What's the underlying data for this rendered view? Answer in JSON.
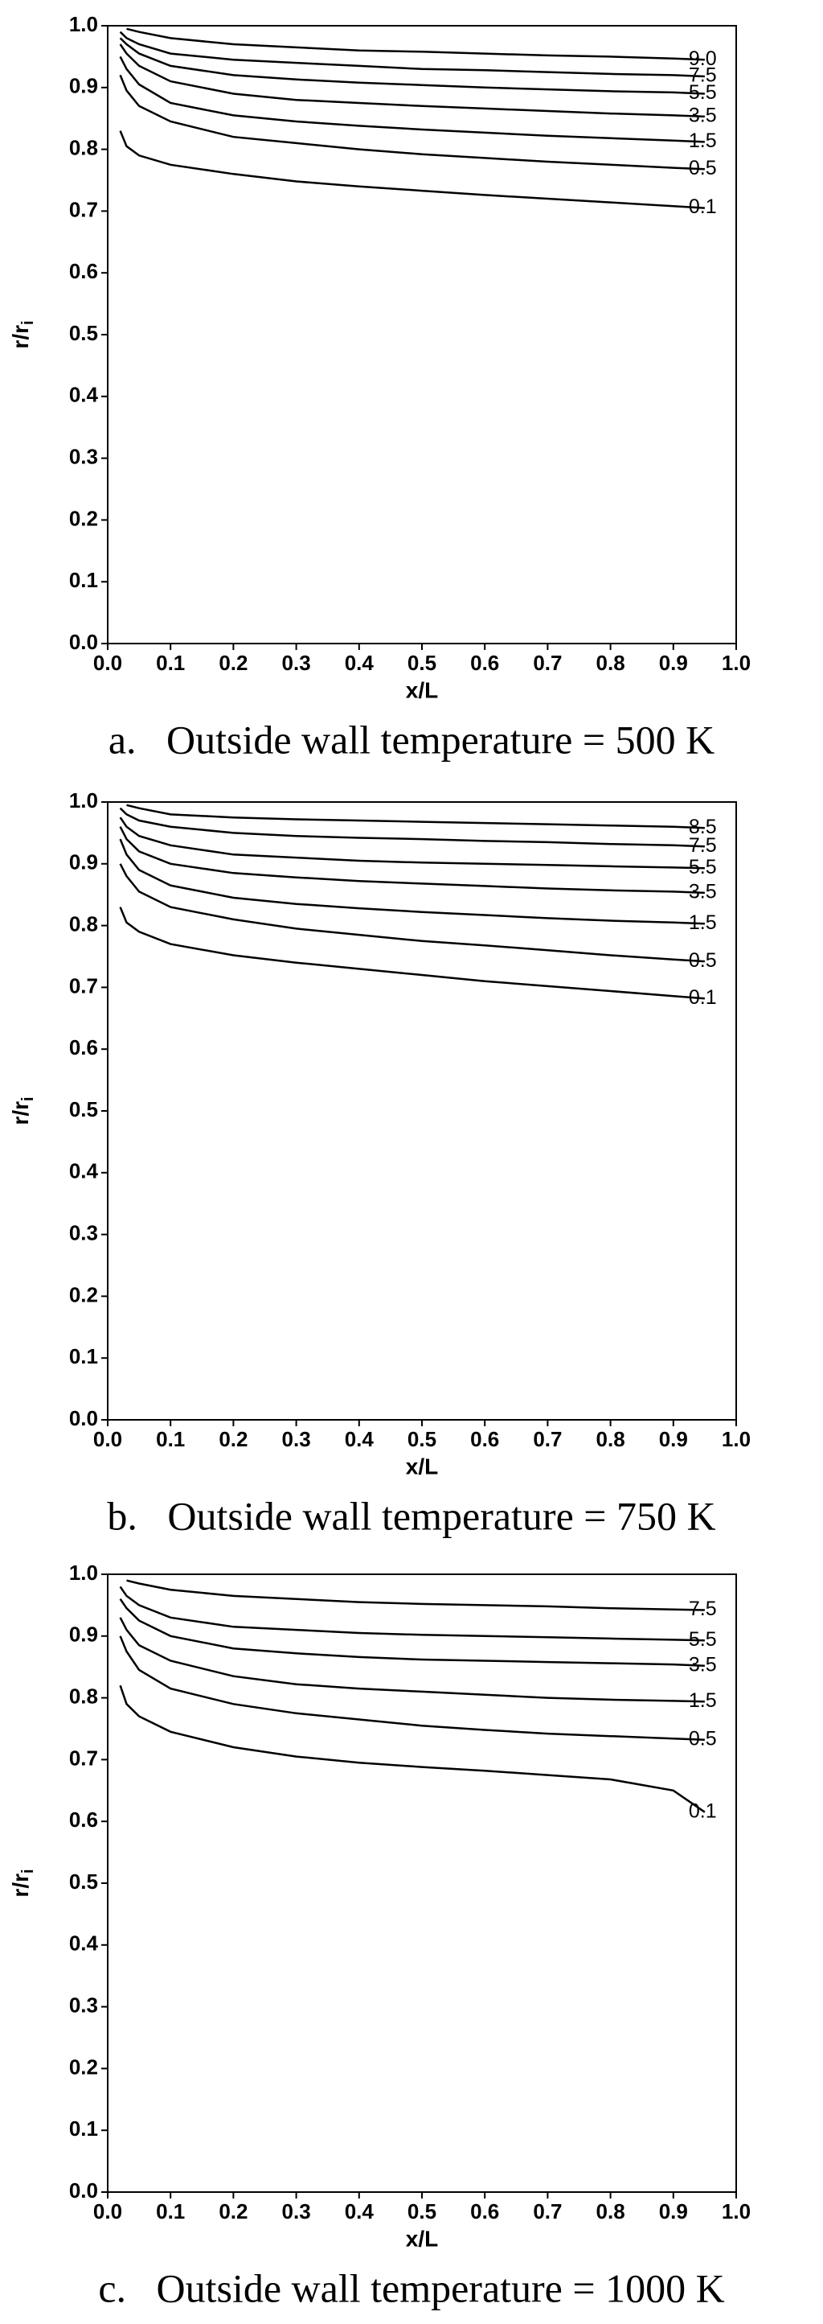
{
  "chart_data": [
    {
      "type": "contour",
      "xlabel": "x/L",
      "ylabel": "r/r",
      "ylabel_subscript": "i",
      "caption": "a.   Outside wall temperature = 500 K",
      "xlim": [
        0,
        1
      ],
      "ylim": [
        0,
        1
      ],
      "xticks": [
        {
          "value": 0,
          "label": "0.0"
        },
        0.1,
        0.2,
        0.3,
        0.4,
        0.5,
        0.6,
        0.7,
        0.8,
        0.9,
        {
          "value": 1,
          "label": "1.0"
        }
      ],
      "yticks": [
        {
          "value": 0,
          "label": "0.0"
        },
        0.1,
        0.2,
        0.3,
        0.4,
        0.5,
        0.6,
        0.7,
        0.8,
        0.9,
        {
          "value": 1,
          "label": "1.0"
        }
      ],
      "x": [
        0.02,
        0.03,
        0.05,
        0.1,
        0.2,
        0.3,
        0.4,
        0.5,
        0.6,
        0.7,
        0.8,
        0.9,
        0.95
      ],
      "series": [
        {
          "name": "9.0",
          "color": "#000000",
          "values": [
            null,
            0.995,
            0.99,
            0.98,
            0.97,
            0.965,
            0.96,
            0.958,
            0.955,
            0.952,
            0.95,
            0.947,
            0.945
          ]
        },
        {
          "name": "7.5",
          "color": "#000000",
          "values": [
            0.99,
            0.98,
            0.97,
            0.955,
            0.945,
            0.94,
            0.935,
            0.93,
            0.928,
            0.925,
            0.922,
            0.92,
            0.918
          ]
        },
        {
          "name": "5.5",
          "color": "#000000",
          "values": [
            0.98,
            0.97,
            0.955,
            0.935,
            0.92,
            0.913,
            0.908,
            0.904,
            0.9,
            0.897,
            0.894,
            0.892,
            0.89
          ]
        },
        {
          "name": "3.5",
          "color": "#000000",
          "values": [
            0.97,
            0.955,
            0.935,
            0.91,
            0.89,
            0.88,
            0.875,
            0.87,
            0.866,
            0.862,
            0.858,
            0.855,
            0.853
          ]
        },
        {
          "name": "1.5",
          "color": "#000000",
          "values": [
            0.95,
            0.93,
            0.905,
            0.875,
            0.855,
            0.845,
            0.838,
            0.832,
            0.827,
            0.822,
            0.818,
            0.814,
            0.812
          ]
        },
        {
          "name": "0.5",
          "color": "#000000",
          "values": [
            0.92,
            0.895,
            0.87,
            0.845,
            0.82,
            0.81,
            0.8,
            0.792,
            0.786,
            0.78,
            0.775,
            0.77,
            0.768
          ]
        },
        {
          "name": "0.1",
          "color": "#000000",
          "values": [
            0.83,
            0.805,
            0.79,
            0.775,
            0.76,
            0.748,
            0.74,
            0.733,
            0.726,
            0.72,
            0.714,
            0.708,
            0.705
          ]
        }
      ]
    },
    {
      "type": "contour",
      "xlabel": "x/L",
      "ylabel": "r/r",
      "ylabel_subscript": "i",
      "caption": "b.   Outside wall temperature = 750 K",
      "xlim": [
        0,
        1
      ],
      "ylim": [
        0,
        1
      ],
      "xticks": [
        {
          "value": 0,
          "label": "0.0"
        },
        0.1,
        0.2,
        0.3,
        0.4,
        0.5,
        0.6,
        0.7,
        0.8,
        0.9,
        {
          "value": 1,
          "label": "1.0"
        }
      ],
      "yticks": [
        {
          "value": 0,
          "label": "0.0"
        },
        0.1,
        0.2,
        0.3,
        0.4,
        0.5,
        0.6,
        0.7,
        0.8,
        0.9,
        {
          "value": 1,
          "label": "1.0"
        }
      ],
      "x": [
        0.02,
        0.03,
        0.05,
        0.1,
        0.2,
        0.3,
        0.4,
        0.5,
        0.6,
        0.7,
        0.8,
        0.9,
        0.95
      ],
      "series": [
        {
          "name": "8.5",
          "color": "#000000",
          "values": [
            null,
            0.995,
            0.99,
            0.98,
            0.975,
            0.972,
            0.97,
            0.968,
            0.966,
            0.964,
            0.962,
            0.96,
            0.958
          ]
        },
        {
          "name": "7.5",
          "color": "#000000",
          "values": [
            0.99,
            0.98,
            0.97,
            0.96,
            0.95,
            0.945,
            0.942,
            0.94,
            0.937,
            0.935,
            0.932,
            0.93,
            0.928
          ]
        },
        {
          "name": "5.5",
          "color": "#000000",
          "values": [
            0.975,
            0.96,
            0.945,
            0.93,
            0.915,
            0.91,
            0.905,
            0.902,
            0.9,
            0.898,
            0.896,
            0.894,
            0.893
          ]
        },
        {
          "name": "3.5",
          "color": "#000000",
          "values": [
            0.96,
            0.94,
            0.92,
            0.9,
            0.885,
            0.878,
            0.872,
            0.868,
            0.864,
            0.86,
            0.857,
            0.855,
            0.853
          ]
        },
        {
          "name": "1.5",
          "color": "#000000",
          "values": [
            0.94,
            0.915,
            0.89,
            0.865,
            0.845,
            0.835,
            0.828,
            0.822,
            0.817,
            0.812,
            0.808,
            0.805,
            0.803
          ]
        },
        {
          "name": "0.5",
          "color": "#000000",
          "values": [
            0.9,
            0.88,
            0.855,
            0.83,
            0.81,
            0.795,
            0.785,
            0.775,
            0.768,
            0.76,
            0.752,
            0.745,
            0.742
          ]
        },
        {
          "name": "0.1",
          "color": "#000000",
          "values": [
            0.83,
            0.805,
            0.79,
            0.77,
            0.752,
            0.74,
            0.73,
            0.72,
            0.71,
            0.702,
            0.694,
            0.686,
            0.682
          ]
        }
      ]
    },
    {
      "type": "contour",
      "xlabel": "x/L",
      "ylabel": "r/r",
      "ylabel_subscript": "i",
      "caption": "c.   Outside wall temperature = 1000 K",
      "xlim": [
        0,
        1
      ],
      "ylim": [
        0,
        1
      ],
      "xticks": [
        {
          "value": 0,
          "label": "0.0"
        },
        0.1,
        0.2,
        0.3,
        0.4,
        0.5,
        0.6,
        0.7,
        0.8,
        0.9,
        {
          "value": 1,
          "label": "1.0"
        }
      ],
      "yticks": [
        {
          "value": 0,
          "label": "0.0"
        },
        0.1,
        0.2,
        0.3,
        0.4,
        0.5,
        0.6,
        0.7,
        0.8,
        0.9,
        {
          "value": 1,
          "label": "1.0"
        }
      ],
      "x": [
        0.02,
        0.03,
        0.05,
        0.1,
        0.2,
        0.3,
        0.4,
        0.5,
        0.6,
        0.7,
        0.8,
        0.9,
        0.95
      ],
      "series": [
        {
          "name": "7.5",
          "color": "#000000",
          "values": [
            null,
            0.99,
            0.985,
            0.975,
            0.965,
            0.96,
            0.955,
            0.952,
            0.95,
            0.948,
            0.945,
            0.943,
            0.942
          ]
        },
        {
          "name": "5.5",
          "color": "#000000",
          "values": [
            0.98,
            0.965,
            0.95,
            0.93,
            0.915,
            0.91,
            0.905,
            0.902,
            0.9,
            0.898,
            0.896,
            0.894,
            0.893
          ]
        },
        {
          "name": "3.5",
          "color": "#000000",
          "values": [
            0.96,
            0.945,
            0.925,
            0.9,
            0.88,
            0.872,
            0.866,
            0.862,
            0.86,
            0.858,
            0.856,
            0.854,
            0.852
          ]
        },
        {
          "name": "1.5",
          "color": "#000000",
          "values": [
            0.93,
            0.91,
            0.885,
            0.86,
            0.835,
            0.822,
            0.815,
            0.81,
            0.805,
            0.8,
            0.797,
            0.795,
            0.794
          ]
        },
        {
          "name": "0.5",
          "color": "#000000",
          "values": [
            0.9,
            0.875,
            0.845,
            0.815,
            0.79,
            0.775,
            0.765,
            0.755,
            0.748,
            0.742,
            0.738,
            0.734,
            0.732
          ]
        },
        {
          "name": "0.1",
          "color": "#000000",
          "values": [
            0.82,
            0.79,
            0.77,
            0.745,
            0.72,
            0.705,
            0.695,
            0.688,
            0.682,
            0.675,
            0.668,
            0.65,
            0.615
          ]
        }
      ]
    }
  ]
}
